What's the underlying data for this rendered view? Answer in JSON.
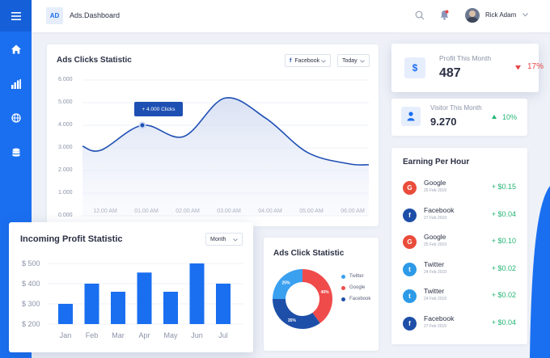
{
  "app": {
    "logo": "AD",
    "brand": "Ads.Dashboard"
  },
  "user": {
    "name": "Rick Adam"
  },
  "nav": {
    "items": [
      "home-icon",
      "bar-chart-icon",
      "globe-icon",
      "database-icon"
    ]
  },
  "ads_clicks": {
    "title": "Ads Clicks Statistic",
    "filter_source": "Facebook",
    "filter_period": "Today",
    "tooltip": "+ 4.000 Clicks",
    "accent_color": "#1e4fb3"
  },
  "incoming_profit": {
    "title": "Incoming Profit Statistic",
    "filter_period": "Month",
    "bar_color": "#1a6ff0"
  },
  "ads_click_donut": {
    "title": "Ads Click Statistic"
  },
  "profit_month": {
    "label": "Profit This Month",
    "value": "487",
    "change": "17%",
    "change_color": "#e84545",
    "icon": "$"
  },
  "visitor_month": {
    "label": "Visitor This Month",
    "value": "9.270",
    "change": "10%",
    "change_color": "#22b573"
  },
  "earning": {
    "title": "Earning Per Hour",
    "rows": [
      {
        "name": "Google",
        "date": "25 Feb 2019",
        "amount": "+ $0.15",
        "icon": "google-icon",
        "color": "#ea4c3b",
        "glyph": "G"
      },
      {
        "name": "Facebook",
        "date": "27 Feb 2019",
        "amount": "+ $0.04",
        "icon": "facebook-icon",
        "color": "#1d4fa8",
        "glyph": "f"
      },
      {
        "name": "Google",
        "date": "25 Feb 2019",
        "amount": "+ $0.10",
        "icon": "google-icon",
        "color": "#ea4c3b",
        "glyph": "G"
      },
      {
        "name": "Twitter",
        "date": "24 Feb 2019",
        "amount": "+ $0.02",
        "icon": "twitter-icon",
        "color": "#2d9ae8",
        "glyph": "t"
      },
      {
        "name": "Twitter",
        "date": "24 Feb 2019",
        "amount": "+ $0.02",
        "icon": "twitter-icon",
        "color": "#2d9ae8",
        "glyph": "t"
      },
      {
        "name": "Facebook",
        "date": "27 Feb 2019",
        "amount": "+ $0.04",
        "icon": "facebook-icon",
        "color": "#1d4fa8",
        "glyph": "f"
      }
    ]
  },
  "chart_data": [
    {
      "type": "area",
      "title": "Ads Clicks Statistic",
      "x": [
        "12.00 AM",
        "01.00 AM",
        "02.00 AM",
        "03.00 AM",
        "04.00 AM",
        "05.00 AM",
        "06.00 AM"
      ],
      "y_ticks": [
        "6.000",
        "5.000",
        "4.000",
        "3.000",
        "2.000",
        "1.000",
        "0.000"
      ],
      "ylim": [
        0,
        6000
      ],
      "series": [
        {
          "values": [
            2900,
            4000,
            3500,
            5200,
            4300,
            2800,
            2300
          ]
        }
      ],
      "grid": true
    },
    {
      "type": "bar",
      "title": "Incoming Profit Statistic",
      "categories": [
        "Jan",
        "Feb",
        "Mar",
        "Apr",
        "May",
        "Jun",
        "Jul"
      ],
      "values": [
        300,
        400,
        360,
        455,
        360,
        500,
        400
      ],
      "y_ticks": [
        "$ 500",
        "$ 400",
        "$ 300",
        "$ 200"
      ],
      "ylim": [
        200,
        500
      ],
      "grid": true
    },
    {
      "type": "pie",
      "title": "Ads Click Statistic",
      "legend_placement": "right",
      "slices": [
        {
          "name": "Twitter",
          "value": 25,
          "label": "25%",
          "color": "#3aa0f0"
        },
        {
          "name": "Google",
          "value": 40,
          "label": "40%",
          "color": "#f04b4b"
        },
        {
          "name": "Facebook",
          "value": 35,
          "label": "35%",
          "color": "#1e4fa8"
        }
      ]
    }
  ]
}
